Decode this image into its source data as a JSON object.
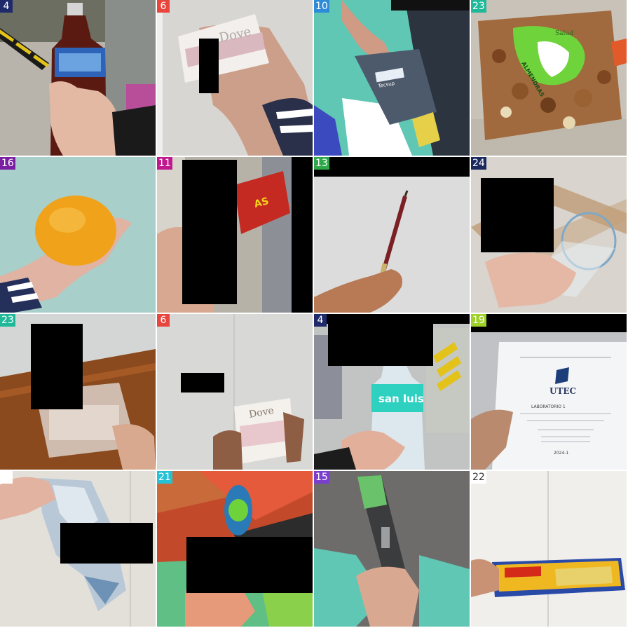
{
  "tiles": [
    {
      "label": "4",
      "badge_color": "#1f2a6b",
      "subject": "plastic bottle of dark beverage with blue label held in hand"
    },
    {
      "label": "6",
      "badge_color": "#e8453c",
      "subject": "bar of soap in white box held in hand"
    },
    {
      "label": "10",
      "badge_color": "#2e8bd8",
      "subject": "gray card held in hand with color segmentation"
    },
    {
      "label": "23",
      "badge_color": "#1fb99a",
      "subject": "plastic container of mixed nuts with green label"
    },
    {
      "label": "16",
      "badge_color": "#7b1fa2",
      "subject": "orange fruit held in hand"
    },
    {
      "label": "11",
      "badge_color": "#c2188f",
      "subject": "red snack box held in hand"
    },
    {
      "label": "13",
      "badge_color": "#2fa84a",
      "subject": "pencil held in hand"
    },
    {
      "label": "24",
      "badge_color": "#1a2a5e",
      "subject": "clear drinking glass held in hand"
    },
    {
      "label": "23",
      "badge_color": "#1fb99a",
      "subject": "empty clear plastic tray held in hand"
    },
    {
      "label": "6",
      "badge_color": "#e8453c",
      "subject": "bar of soap in white box held in hand"
    },
    {
      "label": "4",
      "badge_color": "#1f2a6b",
      "subject": "plastic water bottle with teal label held in hand"
    },
    {
      "label": "19",
      "badge_color": "#9ed12a",
      "subject": "printed paper document held in hand"
    },
    {
      "label": "",
      "badge_color": "#ffffff",
      "subject": "crumpled plastic wrapper held in hand"
    },
    {
      "label": "21",
      "badge_color": "#25c2d6",
      "subject": "snack packet held in hand with color segmentation"
    },
    {
      "label": "15",
      "badge_color": "#7b3fd0",
      "subject": "black stick with green cap held in hand"
    },
    {
      "label": "22",
      "badge_color": "#ffffff",
      "subject": "yellow wafer bar held in hand"
    }
  ],
  "texts": {
    "utec_logo": "UTEC",
    "water_brand": "san luis",
    "soap_brand": "Dove",
    "snack_text": "AS",
    "card_text": "Tecsup",
    "nuts_label_1": "ALMENDRAS",
    "nuts_label_2": "Salud",
    "doc_title": "LABORATORIO 1",
    "doc_year": "2024-1"
  }
}
